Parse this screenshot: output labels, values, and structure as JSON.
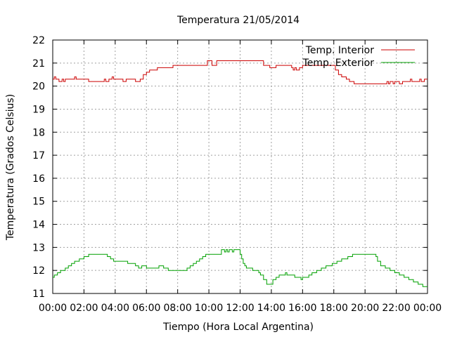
{
  "chart_data": {
    "type": "line",
    "title": "Temperatura 21/05/2014",
    "xlabel": "Tiempo (Hora Local Argentina)",
    "ylabel": "Temperatura (Grados Celsius)",
    "xlim": [
      0,
      24
    ],
    "ylim": [
      11,
      22
    ],
    "grid": true,
    "legend_position": "top-right",
    "x_ticks": [
      {
        "value": 0,
        "label": "00:00"
      },
      {
        "value": 2,
        "label": "02:00"
      },
      {
        "value": 4,
        "label": "04:00"
      },
      {
        "value": 6,
        "label": "06:00"
      },
      {
        "value": 8,
        "label": "08:00"
      },
      {
        "value": 10,
        "label": "10:00"
      },
      {
        "value": 12,
        "label": "12:00"
      },
      {
        "value": 14,
        "label": "14:00"
      },
      {
        "value": 16,
        "label": "16:00"
      },
      {
        "value": 18,
        "label": "18:00"
      },
      {
        "value": 20,
        "label": "20:00"
      },
      {
        "value": 22,
        "label": "22:00"
      },
      {
        "value": 24,
        "label": "00:00"
      }
    ],
    "y_ticks": [
      {
        "value": 11,
        "label": "11"
      },
      {
        "value": 12,
        "label": "12"
      },
      {
        "value": 13,
        "label": "13"
      },
      {
        "value": 14,
        "label": "14"
      },
      {
        "value": 15,
        "label": "15"
      },
      {
        "value": 16,
        "label": "16"
      },
      {
        "value": 17,
        "label": "17"
      },
      {
        "value": 18,
        "label": "18"
      },
      {
        "value": 19,
        "label": "19"
      },
      {
        "value": 20,
        "label": "20"
      },
      {
        "value": 21,
        "label": "21"
      },
      {
        "value": 22,
        "label": "22"
      }
    ],
    "series": [
      {
        "name": "Temp. Interior",
        "color": "#cc0000",
        "points": [
          [
            0.0,
            20.3
          ],
          [
            0.1,
            20.4
          ],
          [
            0.2,
            20.3
          ],
          [
            0.4,
            20.2
          ],
          [
            0.6,
            20.3
          ],
          [
            0.7,
            20.2
          ],
          [
            0.8,
            20.3
          ],
          [
            1.2,
            20.3
          ],
          [
            1.4,
            20.4
          ],
          [
            1.5,
            20.3
          ],
          [
            2.2,
            20.3
          ],
          [
            2.3,
            20.2
          ],
          [
            3.2,
            20.2
          ],
          [
            3.3,
            20.3
          ],
          [
            3.4,
            20.2
          ],
          [
            3.6,
            20.3
          ],
          [
            3.8,
            20.4
          ],
          [
            3.9,
            20.3
          ],
          [
            4.4,
            20.3
          ],
          [
            4.5,
            20.2
          ],
          [
            4.7,
            20.3
          ],
          [
            5.2,
            20.3
          ],
          [
            5.3,
            20.2
          ],
          [
            5.6,
            20.3
          ],
          [
            5.8,
            20.5
          ],
          [
            6.0,
            20.6
          ],
          [
            6.2,
            20.7
          ],
          [
            6.6,
            20.7
          ],
          [
            6.7,
            20.8
          ],
          [
            7.6,
            20.8
          ],
          [
            7.7,
            20.9
          ],
          [
            9.8,
            20.9
          ],
          [
            9.9,
            21.1
          ],
          [
            10.1,
            21.1
          ],
          [
            10.2,
            20.9
          ],
          [
            10.4,
            20.9
          ],
          [
            10.5,
            21.1
          ],
          [
            13.4,
            21.1
          ],
          [
            13.5,
            20.9
          ],
          [
            13.8,
            20.9
          ],
          [
            13.9,
            20.8
          ],
          [
            14.2,
            20.8
          ],
          [
            14.3,
            20.9
          ],
          [
            15.2,
            20.9
          ],
          [
            15.3,
            20.8
          ],
          [
            15.4,
            20.7
          ],
          [
            15.5,
            20.8
          ],
          [
            15.6,
            20.7
          ],
          [
            15.8,
            20.8
          ],
          [
            16.0,
            20.9
          ],
          [
            18.0,
            20.9
          ],
          [
            18.1,
            20.7
          ],
          [
            18.3,
            20.5
          ],
          [
            18.5,
            20.4
          ],
          [
            18.8,
            20.3
          ],
          [
            19.0,
            20.2
          ],
          [
            19.3,
            20.1
          ],
          [
            21.3,
            20.1
          ],
          [
            21.4,
            20.2
          ],
          [
            21.5,
            20.1
          ],
          [
            21.6,
            20.2
          ],
          [
            21.8,
            20.1
          ],
          [
            21.9,
            20.2
          ],
          [
            22.1,
            20.2
          ],
          [
            22.2,
            20.1
          ],
          [
            22.4,
            20.2
          ],
          [
            22.7,
            20.2
          ],
          [
            22.9,
            20.3
          ],
          [
            23.0,
            20.2
          ],
          [
            23.3,
            20.2
          ],
          [
            23.5,
            20.3
          ],
          [
            23.6,
            20.2
          ],
          [
            23.8,
            20.3
          ],
          [
            24.0,
            20.3
          ]
        ]
      },
      {
        "name": "Temp. Exterior",
        "color": "#00a000",
        "points": [
          [
            0.0,
            11.7
          ],
          [
            0.1,
            11.8
          ],
          [
            0.3,
            11.9
          ],
          [
            0.5,
            12.0
          ],
          [
            0.8,
            12.1
          ],
          [
            1.0,
            12.2
          ],
          [
            1.2,
            12.3
          ],
          [
            1.4,
            12.4
          ],
          [
            1.7,
            12.5
          ],
          [
            2.0,
            12.6
          ],
          [
            2.3,
            12.7
          ],
          [
            3.3,
            12.7
          ],
          [
            3.5,
            12.6
          ],
          [
            3.7,
            12.5
          ],
          [
            3.9,
            12.4
          ],
          [
            4.7,
            12.4
          ],
          [
            4.8,
            12.3
          ],
          [
            5.1,
            12.3
          ],
          [
            5.3,
            12.2
          ],
          [
            5.5,
            12.1
          ],
          [
            5.7,
            12.2
          ],
          [
            5.9,
            12.2
          ],
          [
            6.0,
            12.1
          ],
          [
            6.6,
            12.1
          ],
          [
            6.8,
            12.2
          ],
          [
            7.1,
            12.1
          ],
          [
            7.4,
            12.0
          ],
          [
            8.4,
            12.0
          ],
          [
            8.6,
            12.1
          ],
          [
            8.8,
            12.2
          ],
          [
            9.0,
            12.3
          ],
          [
            9.2,
            12.4
          ],
          [
            9.4,
            12.5
          ],
          [
            9.6,
            12.6
          ],
          [
            9.8,
            12.7
          ],
          [
            10.7,
            12.7
          ],
          [
            10.8,
            12.9
          ],
          [
            11.0,
            12.8
          ],
          [
            11.1,
            12.9
          ],
          [
            11.2,
            12.8
          ],
          [
            11.3,
            12.9
          ],
          [
            11.5,
            12.8
          ],
          [
            11.6,
            12.9
          ],
          [
            11.9,
            12.9
          ],
          [
            12.0,
            12.7
          ],
          [
            12.1,
            12.5
          ],
          [
            12.2,
            12.3
          ],
          [
            12.3,
            12.2
          ],
          [
            12.4,
            12.1
          ],
          [
            12.6,
            12.1
          ],
          [
            12.8,
            12.0
          ],
          [
            13.0,
            12.0
          ],
          [
            13.2,
            11.9
          ],
          [
            13.3,
            11.8
          ],
          [
            13.5,
            11.6
          ],
          [
            13.7,
            11.4
          ],
          [
            13.9,
            11.4
          ],
          [
            14.1,
            11.6
          ],
          [
            14.3,
            11.7
          ],
          [
            14.5,
            11.8
          ],
          [
            14.7,
            11.8
          ],
          [
            14.9,
            11.9
          ],
          [
            15.0,
            11.8
          ],
          [
            15.3,
            11.8
          ],
          [
            15.5,
            11.7
          ],
          [
            15.7,
            11.7
          ],
          [
            15.9,
            11.6
          ],
          [
            16.0,
            11.7
          ],
          [
            16.2,
            11.7
          ],
          [
            16.4,
            11.8
          ],
          [
            16.6,
            11.9
          ],
          [
            16.9,
            12.0
          ],
          [
            17.2,
            12.1
          ],
          [
            17.5,
            12.2
          ],
          [
            17.9,
            12.3
          ],
          [
            18.2,
            12.4
          ],
          [
            18.5,
            12.5
          ],
          [
            18.9,
            12.6
          ],
          [
            19.2,
            12.7
          ],
          [
            20.6,
            12.7
          ],
          [
            20.7,
            12.6
          ],
          [
            20.8,
            12.4
          ],
          [
            21.0,
            12.2
          ],
          [
            21.3,
            12.1
          ],
          [
            21.6,
            12.0
          ],
          [
            21.9,
            11.9
          ],
          [
            22.2,
            11.8
          ],
          [
            22.5,
            11.7
          ],
          [
            22.8,
            11.6
          ],
          [
            23.1,
            11.5
          ],
          [
            23.4,
            11.4
          ],
          [
            23.7,
            11.3
          ],
          [
            24.0,
            11.3
          ]
        ]
      }
    ]
  }
}
